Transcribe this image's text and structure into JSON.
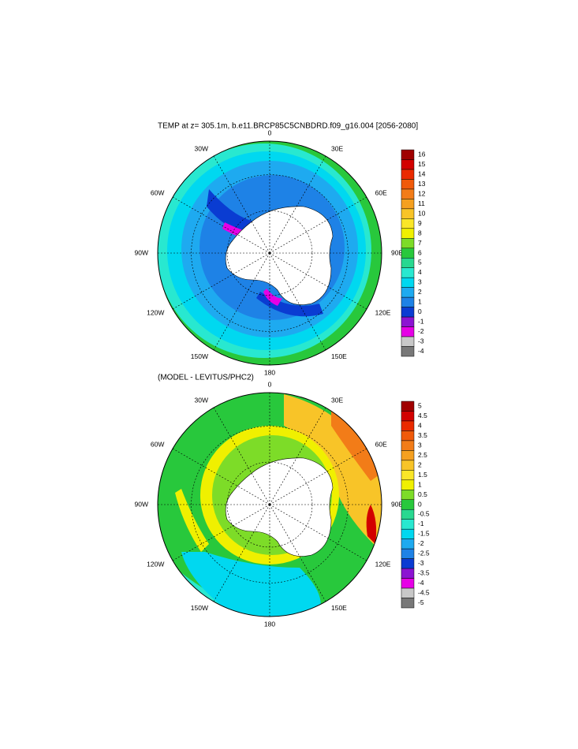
{
  "maps": [
    {
      "title": "TEMP at z= 305.1m, b.e11.BRCP85C5CNBDRD.f09_g16.004 [2056-2080]",
      "lon_labels": [
        "0",
        "30E",
        "60E",
        "90E",
        "120E",
        "150E",
        "180",
        "150W",
        "120W",
        "90W",
        "60W",
        "30W"
      ],
      "levels": [
        16,
        15,
        14,
        13,
        12,
        11,
        10,
        9,
        8,
        7,
        6,
        5,
        4,
        3,
        2,
        1,
        0,
        -1,
        -2,
        -3,
        -4
      ]
    },
    {
      "title": "(MODEL - LEVITUS/PHC2)",
      "lon_labels": [
        "0",
        "30E",
        "60E",
        "90E",
        "120E",
        "150E",
        "180",
        "150W",
        "120W",
        "90W",
        "60W",
        "30W"
      ],
      "levels": [
        5,
        4.5,
        4,
        3.5,
        3,
        2.5,
        2,
        1.5,
        1,
        0.5,
        0,
        -0.5,
        -1,
        -1.5,
        -2,
        -2.5,
        -3,
        -3.5,
        -4,
        -4.5,
        -5
      ]
    }
  ],
  "palette": [
    "#a00000",
    "#d20000",
    "#ea2a00",
    "#f05a0a",
    "#f27c18",
    "#f5a020",
    "#f8c428",
    "#fae628",
    "#f0f000",
    "#7ddc28",
    "#28c83c",
    "#28d890",
    "#28e8d0",
    "#00d8f0",
    "#1eaaf0",
    "#1e82e6",
    "#0a3cd2",
    "#8c14d2",
    "#e600e6",
    "#c8c8c8",
    "#787878"
  ]
}
